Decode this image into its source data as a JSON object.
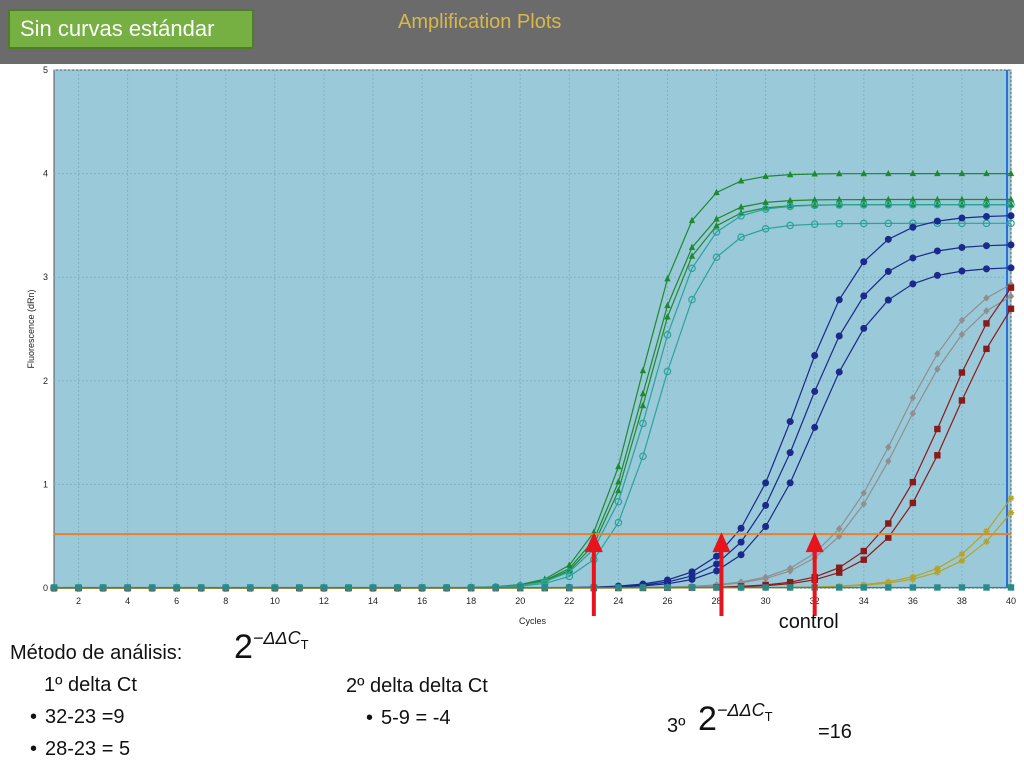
{
  "header": {
    "badge": "Sin curvas estándar",
    "title": "Amplification Plots"
  },
  "chart_data": {
    "type": "line",
    "title": "Amplification Plots",
    "xlabel": "Cycles",
    "ylabel": "Fluorescence (dRn)",
    "xlim": [
      1,
      40
    ],
    "ylim": [
      0,
      5
    ],
    "x_ticks": [
      2,
      4,
      6,
      8,
      10,
      12,
      14,
      16,
      18,
      20,
      22,
      24,
      26,
      28,
      30,
      32,
      34,
      36,
      38,
      40
    ],
    "y_ticks": [
      0,
      1,
      2,
      3,
      4,
      5
    ],
    "grid": true,
    "threshold": 0.52,
    "threshold_color": "#e8822a",
    "background": "#9ac9d9",
    "series": [
      {
        "color": "#1e8a2e",
        "marker": "triangle",
        "ct": 24.9,
        "max": 4.0,
        "k": 0.98
      },
      {
        "color": "#1e8a2e",
        "marker": "triangle",
        "ct": 25.0,
        "max": 3.75,
        "k": 0.98
      },
      {
        "color": "#1e8a2e",
        "marker": "triangle",
        "ct": 25.1,
        "max": 3.7,
        "k": 0.98
      },
      {
        "color": "#2aa39a",
        "marker": "circle",
        "ct": 25.3,
        "max": 3.7,
        "k": 0.95
      },
      {
        "color": "#2aa39a",
        "marker": "circle",
        "ct": 25.6,
        "max": 3.52,
        "k": 0.95
      },
      {
        "color": "#1a2a8a",
        "marker": "dot",
        "ct": 31.3,
        "max": 3.6,
        "k": 0.72
      },
      {
        "color": "#1a2a8a",
        "marker": "dot",
        "ct": 31.6,
        "max": 3.32,
        "k": 0.72
      },
      {
        "color": "#1a2a8a",
        "marker": "dot",
        "ct": 32.0,
        "max": 3.1,
        "k": 0.72
      },
      {
        "color": "#8f8f8f",
        "marker": "diamond",
        "ct": 35.4,
        "max": 3.1,
        "k": 0.62
      },
      {
        "color": "#8f8f8f",
        "marker": "diamond",
        "ct": 35.6,
        "max": 3.0,
        "k": 0.62
      },
      {
        "color": "#8b1a1a",
        "marker": "square",
        "ct": 37.3,
        "max": 3.4,
        "k": 0.65
      },
      {
        "color": "#8b1a1a",
        "marker": "square",
        "ct": 37.7,
        "max": 3.3,
        "k": 0.65
      },
      {
        "color": "#b5a427",
        "marker": "star",
        "ct": 41.5,
        "max": 3.0,
        "k": 0.6
      },
      {
        "color": "#b5a427",
        "marker": "star",
        "ct": 41.9,
        "max": 3.0,
        "k": 0.6
      },
      {
        "color": "#2a8a8a",
        "marker": "square",
        "ct": 99,
        "max": 0,
        "k": 0.5
      }
    ],
    "arrows": [
      {
        "x": 23,
        "label": ""
      },
      {
        "x": 28.2,
        "label": ""
      },
      {
        "x": 32,
        "label": "control"
      }
    ]
  },
  "notes": {
    "method_label": "Método de análisis:",
    "step1_title": "1º delta Ct",
    "step1_items": [
      "32-23 =9",
      "28-23 = 5"
    ],
    "step2_title": "2º delta delta Ct",
    "step2_items": [
      "5-9 = -4"
    ],
    "step3_label": "3º",
    "step3_result": "=16",
    "formula_base": "2",
    "formula_exp": "−ΔΔC",
    "formula_sub": "T"
  }
}
